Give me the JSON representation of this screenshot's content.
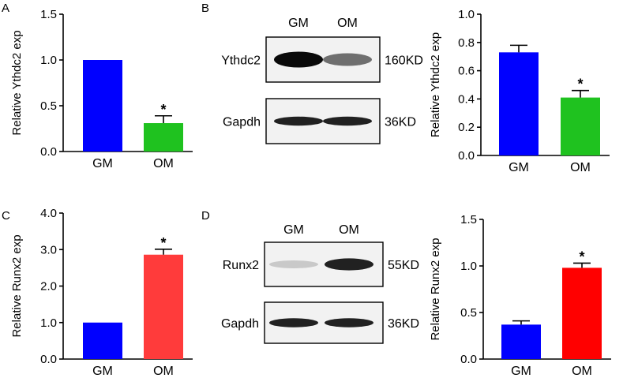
{
  "panel_letters": [
    "A",
    "B",
    "C",
    "D"
  ],
  "colors": {
    "blue": "#0000ff",
    "green": "#1fc21f",
    "red": "#ff3b3b"
  },
  "chart_data": [
    {
      "type": "bar",
      "panel": "A",
      "categories": [
        "GM",
        "OM"
      ],
      "values": [
        1.0,
        0.31
      ],
      "errors": [
        0,
        0.08
      ],
      "bar_colors": [
        "#0000ff",
        "#1fc21f"
      ],
      "significance": [
        "",
        "*"
      ],
      "ylabel": "Relative Ythdc2 exp",
      "ylim": [
        0,
        1.5
      ],
      "yticks": [
        0.0,
        0.5,
        1.0,
        1.5
      ],
      "ytick_labels": [
        "0.0",
        "0.5",
        "1.0",
        "1.5"
      ]
    },
    {
      "type": "bar",
      "panel": "B",
      "categories": [
        "GM",
        "OM"
      ],
      "values": [
        0.73,
        0.41
      ],
      "errors": [
        0.05,
        0.05
      ],
      "bar_colors": [
        "#0000ff",
        "#1fc21f"
      ],
      "significance": [
        "",
        "*"
      ],
      "ylabel": "Relative Ythdc2 exp",
      "ylim": [
        0,
        1.0
      ],
      "yticks": [
        0.0,
        0.2,
        0.4,
        0.6,
        0.8,
        1.0
      ],
      "ytick_labels": [
        "0.0",
        "0.2",
        "0.4",
        "0.6",
        "0.8",
        "1.0"
      ]
    },
    {
      "type": "bar",
      "panel": "C",
      "categories": [
        "GM",
        "OM"
      ],
      "values": [
        1.0,
        2.86
      ],
      "errors": [
        0,
        0.15
      ],
      "bar_colors": [
        "#0000ff",
        "#ff3b3b"
      ],
      "significance": [
        "",
        "*"
      ],
      "ylabel": "Relative Runx2 exp",
      "ylim": [
        0,
        4.0
      ],
      "yticks": [
        0.0,
        1.0,
        2.0,
        3.0,
        4.0
      ],
      "ytick_labels": [
        "0.0",
        "1.0",
        "2.0",
        "3.0",
        "4.0"
      ]
    },
    {
      "type": "bar",
      "panel": "D",
      "categories": [
        "GM",
        "OM"
      ],
      "values": [
        0.37,
        0.98
      ],
      "errors": [
        0.04,
        0.05
      ],
      "bar_colors": [
        "#0000ff",
        "#ff0000"
      ],
      "significance": [
        "",
        "*"
      ],
      "ylabel": "Relative Runx2 exp",
      "ylim": [
        0,
        1.5
      ],
      "yticks": [
        0.0,
        0.5,
        1.0,
        1.5
      ],
      "ytick_labels": [
        "0.0",
        "0.5",
        "1.0",
        "1.5"
      ]
    }
  ],
  "blots": {
    "B": {
      "lanes": [
        "GM",
        "OM"
      ],
      "rows": [
        {
          "protein": "Ythdc2",
          "size": "160KD",
          "intensity": [
            1.0,
            0.55
          ]
        },
        {
          "protein": "Gapdh",
          "size": "36KD",
          "intensity": [
            0.9,
            0.9
          ]
        }
      ]
    },
    "D": {
      "lanes": [
        "GM",
        "OM"
      ],
      "rows": [
        {
          "protein": "Runx2",
          "size": "55KD",
          "intensity": [
            0.15,
            0.9
          ]
        },
        {
          "protein": "Gapdh",
          "size": "36KD",
          "intensity": [
            0.9,
            0.9
          ]
        }
      ]
    }
  }
}
